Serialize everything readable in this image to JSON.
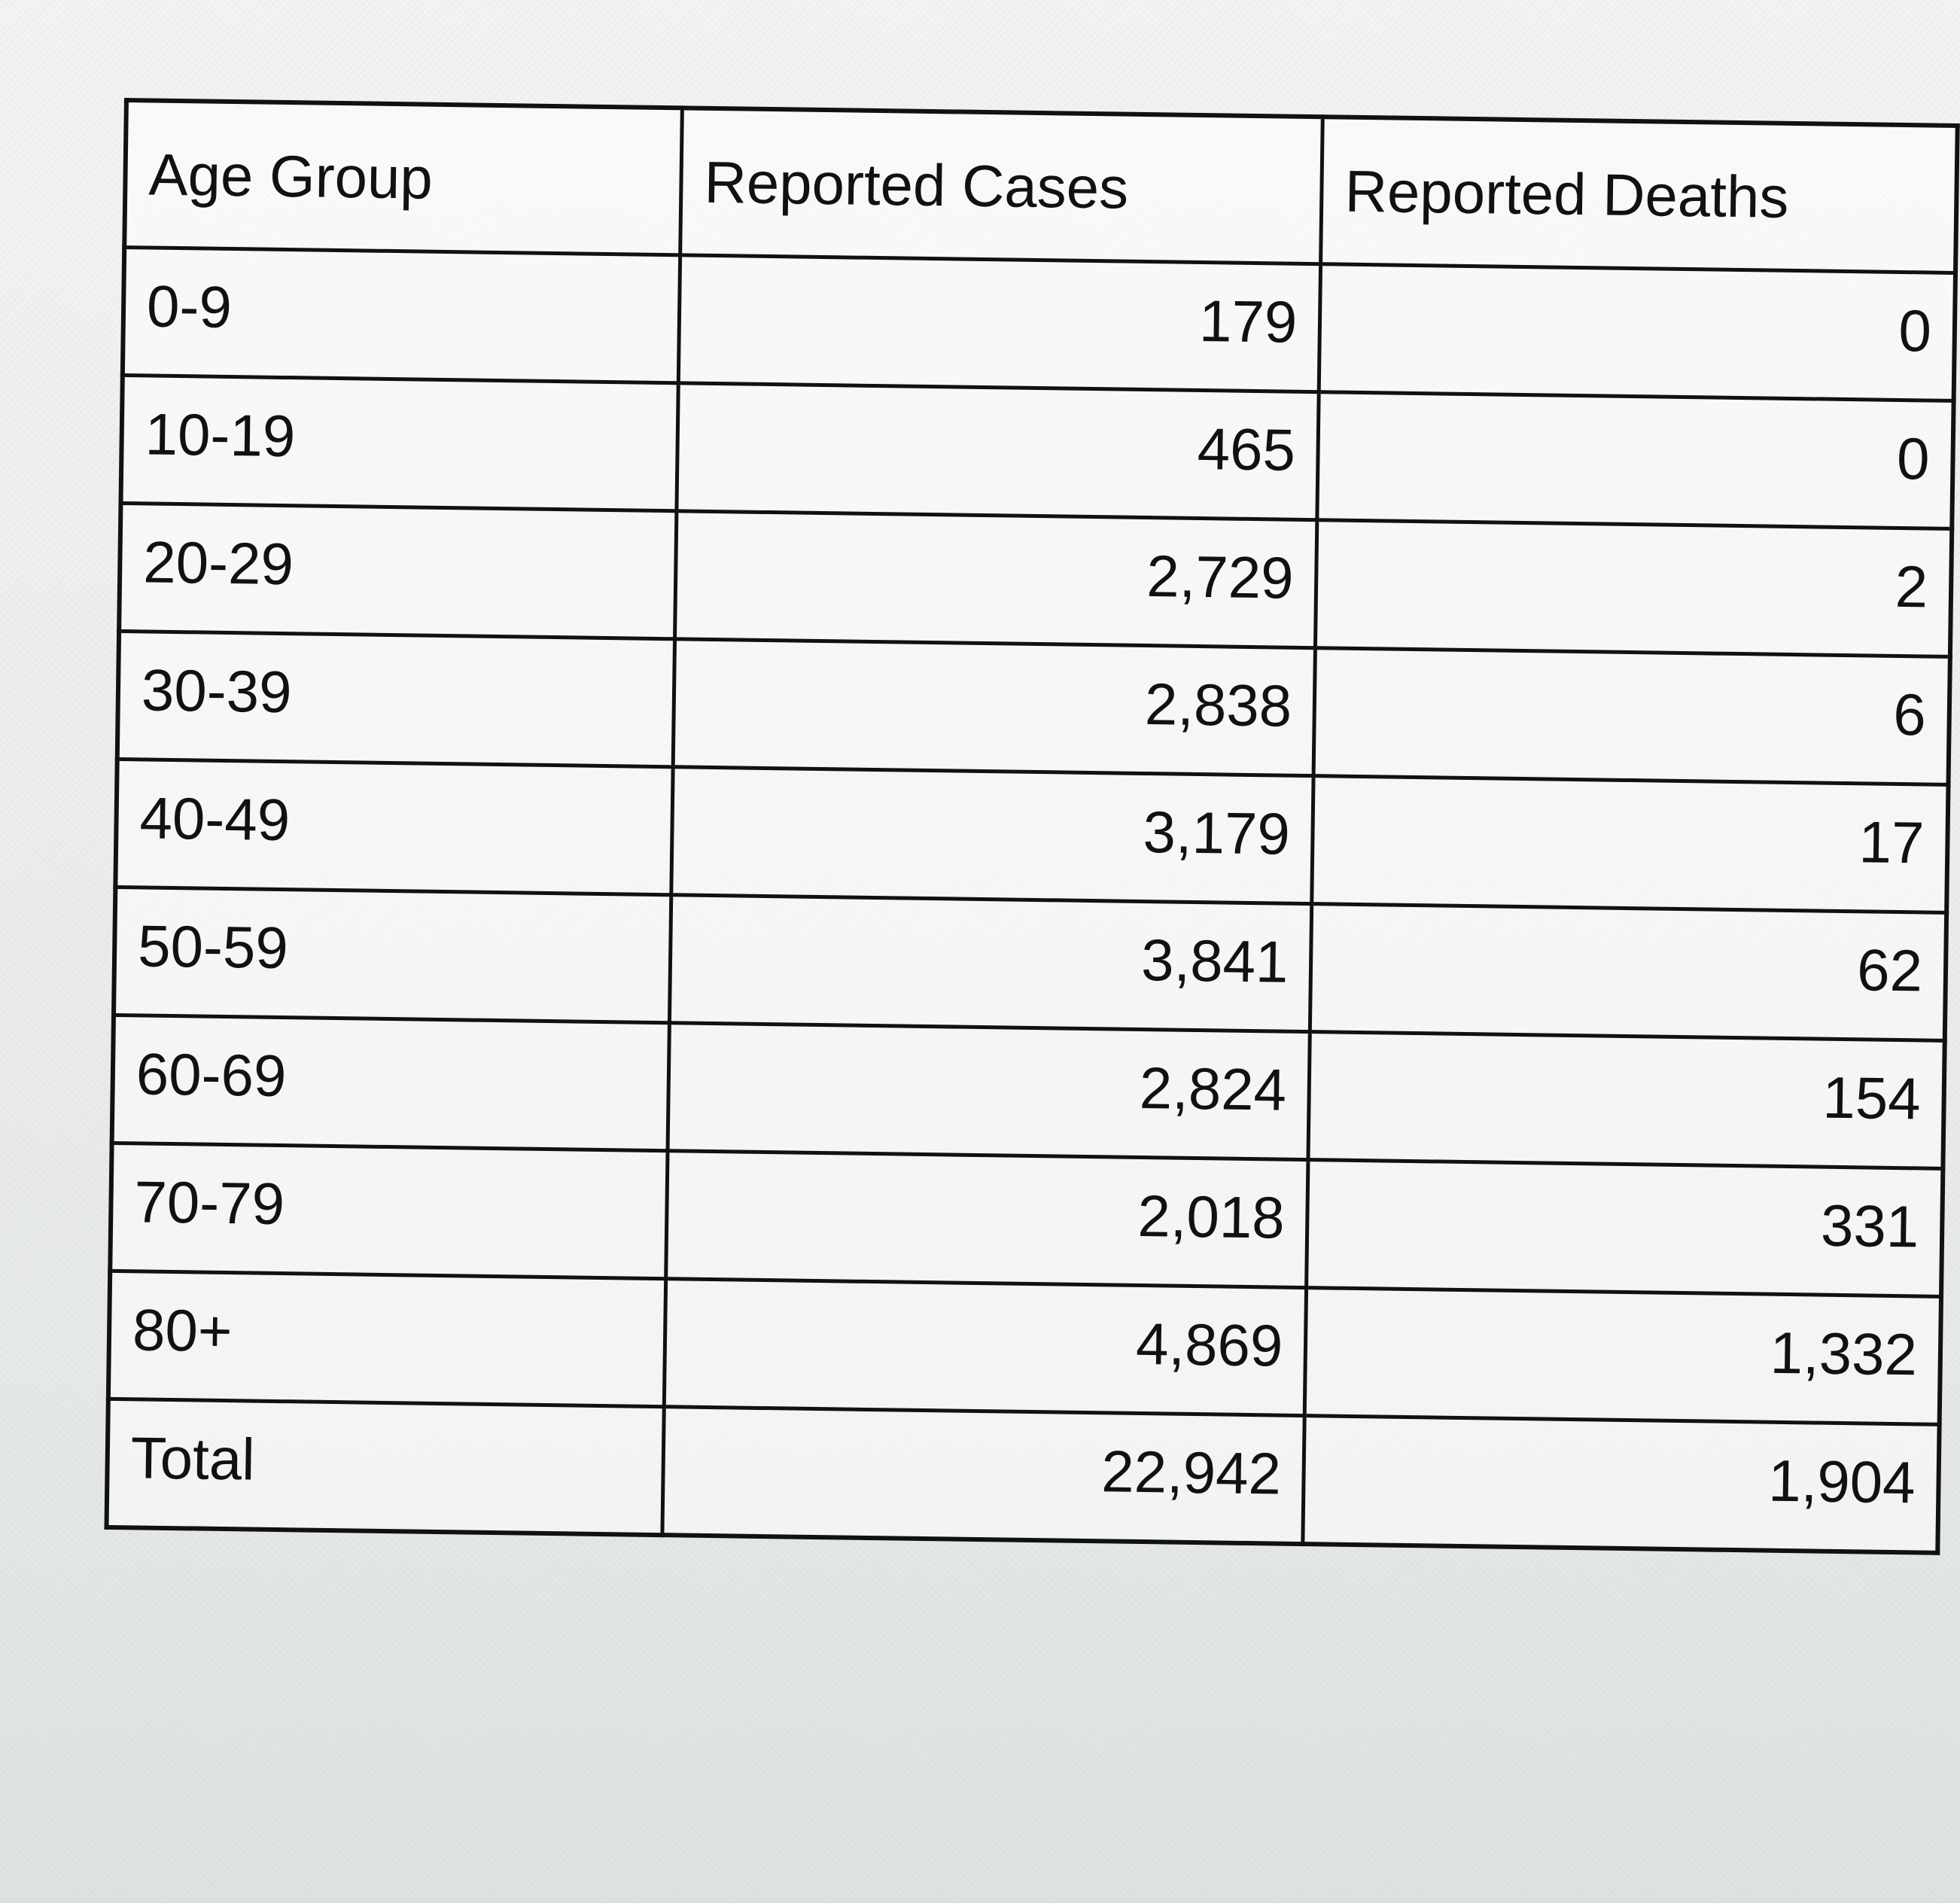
{
  "table": {
    "headers": {
      "age_group": "Age Group",
      "reported_cases": "Reported Cases",
      "reported_deaths": "Reported Deaths"
    },
    "rows": [
      {
        "age_group": "0-9",
        "cases": "179",
        "deaths": "0"
      },
      {
        "age_group": "10-19",
        "cases": "465",
        "deaths": "0"
      },
      {
        "age_group": "20-29",
        "cases": "2,729",
        "deaths": "2"
      },
      {
        "age_group": "30-39",
        "cases": "2,838",
        "deaths": "6"
      },
      {
        "age_group": "40-49",
        "cases": "3,179",
        "deaths": "17"
      },
      {
        "age_group": "50-59",
        "cases": "3,841",
        "deaths": "62"
      },
      {
        "age_group": "60-69",
        "cases": "2,824",
        "deaths": "154"
      },
      {
        "age_group": "70-79",
        "cases": "2,018",
        "deaths": "331"
      },
      {
        "age_group": "80+",
        "cases": "4,869",
        "deaths": "1,332"
      },
      {
        "age_group": "Total",
        "cases": "22,942",
        "deaths": "1,904"
      }
    ]
  }
}
